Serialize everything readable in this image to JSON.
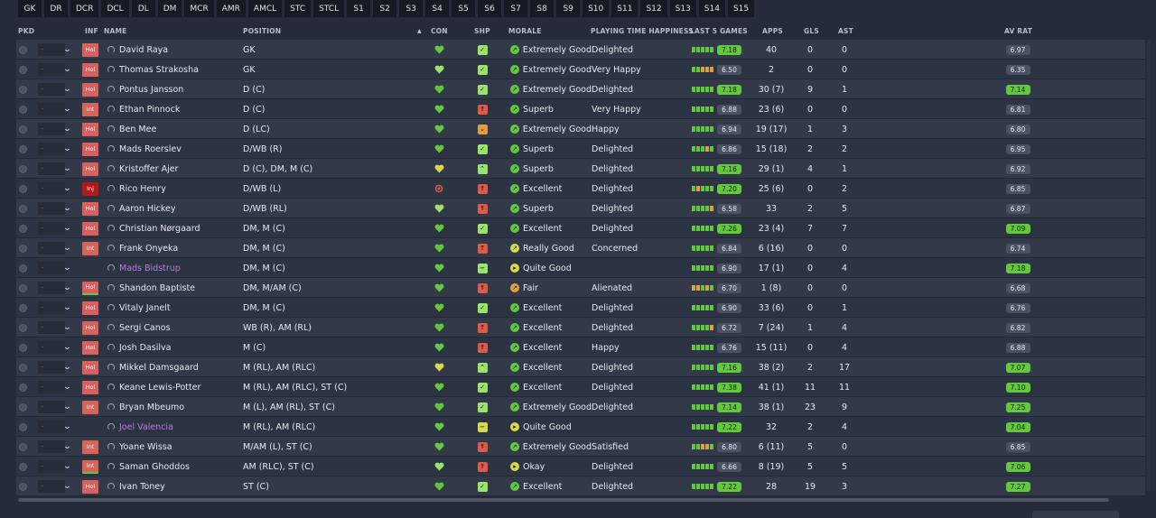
{
  "tabs": [
    "GK",
    "DR",
    "DCR",
    "DCL",
    "DL",
    "DM",
    "MCR",
    "AMR",
    "AMCL",
    "STC",
    "STCL",
    "S1",
    "S2",
    "S3",
    "S4",
    "S5",
    "S6",
    "S7",
    "S8",
    "S9",
    "S10",
    "S11",
    "S12",
    "S13",
    "S14",
    "S15"
  ],
  "columns": {
    "pkd": "PKD",
    "inf": "INF",
    "name": "NAME",
    "position": "POSITION",
    "con": "CON",
    "shp": "SHP",
    "morale": "MORALE",
    "playing_time": "PLAYING TIME HAPPINESS",
    "last5": "LAST 5 GAMES",
    "apps": "APPS",
    "gls": "GLS",
    "ast": "AST",
    "avrat": "AV RAT"
  },
  "colors": {
    "green": "#62c93c",
    "light_green": "#9be36a",
    "yellow": "#d8d84a",
    "orange": "#e0a040",
    "red": "#e05a4a",
    "grey": "#4a5162"
  },
  "players": [
    {
      "inf": "Hol",
      "name": "David Raya",
      "position": "GK",
      "con": "green",
      "shp": "check",
      "shp_color": "light_green",
      "morale": "Extremely Good",
      "morale_icon": "up",
      "morale_color": "green",
      "pt": "Delighted",
      "last5": [
        "green",
        "green",
        "green",
        "green",
        "green"
      ],
      "l5": "7.18",
      "l5_green": true,
      "apps": "40",
      "gls": "0",
      "ast": "0",
      "av": "6.97",
      "av_green": false
    },
    {
      "inf": "Hol",
      "name": "Thomas Strakosha",
      "position": "GK",
      "con": "lightgreen",
      "shp": "check",
      "shp_color": "light_green",
      "morale": "Extremely Good",
      "morale_icon": "up",
      "morale_color": "green",
      "pt": "Very Happy",
      "last5": [
        "green",
        "green",
        "orange",
        "orange",
        "orange"
      ],
      "l5": "6.50",
      "l5_green": false,
      "apps": "2",
      "gls": "0",
      "ast": "0",
      "av": "6.35",
      "av_green": false
    },
    {
      "inf": "Hol",
      "name": "Pontus Jansson",
      "position": "D (C)",
      "con": "green",
      "shp": "check",
      "shp_color": "light_green",
      "morale": "Extremely Good",
      "morale_icon": "up",
      "morale_color": "green",
      "pt": "Delighted",
      "last5": [
        "green",
        "green",
        "green",
        "green",
        "green"
      ],
      "l5": "7.18",
      "l5_green": true,
      "apps": "30 (7)",
      "gls": "9",
      "ast": "1",
      "av": "7.14",
      "av_green": true
    },
    {
      "inf": "Int",
      "name": "Ethan Pinnock",
      "position": "D (C)",
      "con": "green",
      "shp": "arrow",
      "shp_color": "red",
      "morale": "Superb",
      "morale_icon": "up",
      "morale_color": "green",
      "pt": "Very Happy",
      "last5": [
        "green",
        "green",
        "green",
        "green",
        "green"
      ],
      "l5": "6.88",
      "l5_green": false,
      "apps": "23 (6)",
      "gls": "0",
      "ast": "0",
      "av": "6.81",
      "av_green": false
    },
    {
      "inf": "Hol",
      "name": "Ben Mee",
      "position": "D (LC)",
      "con": "green",
      "shp": "down",
      "shp_color": "orange",
      "morale": "Extremely Good",
      "morale_icon": "up",
      "morale_color": "green",
      "pt": "Happy",
      "last5": [
        "green",
        "green",
        "green",
        "green",
        "green"
      ],
      "l5": "6.94",
      "l5_green": false,
      "apps": "19 (17)",
      "gls": "1",
      "ast": "3",
      "av": "6.80",
      "av_green": false
    },
    {
      "inf": "Hol",
      "name": "Mads Roerslev",
      "position": "D/WB (R)",
      "con": "green",
      "shp": "check",
      "shp_color": "light_green",
      "morale": "Superb",
      "morale_icon": "up",
      "morale_color": "green",
      "pt": "Delighted",
      "last5": [
        "green",
        "green",
        "green",
        "orange",
        "green"
      ],
      "l5": "6.86",
      "l5_green": false,
      "apps": "15 (18)",
      "gls": "2",
      "ast": "2",
      "av": "6.95",
      "av_green": false
    },
    {
      "inf": "Hol",
      "name": "Kristoffer Ajer",
      "position": "D (C), DM, M (C)",
      "con": "yellow",
      "shp": "up",
      "shp_color": "light_green",
      "morale": "Superb",
      "morale_icon": "up",
      "morale_color": "green",
      "pt": "Delighted",
      "last5": [
        "green",
        "green",
        "green",
        "green",
        "green"
      ],
      "l5": "7.16",
      "l5_green": true,
      "apps": "29 (1)",
      "gls": "4",
      "ast": "1",
      "av": "6.92",
      "av_green": false
    },
    {
      "inf": "Inj",
      "name": "Rico Henry",
      "position": "D/WB (L)",
      "con": "red",
      "shp": "arrow",
      "shp_color": "red",
      "morale": "Excellent",
      "morale_icon": "up",
      "morale_color": "green",
      "pt": "Delighted",
      "last5": [
        "green",
        "orange",
        "green",
        "green",
        "green"
      ],
      "l5": "7.20",
      "l5_green": true,
      "apps": "25 (6)",
      "gls": "0",
      "ast": "2",
      "av": "6.85",
      "av_green": false
    },
    {
      "inf": "Hol",
      "name": "Aaron Hickey",
      "position": "D/WB (RL)",
      "con": "lightgreen",
      "shp": "arrow",
      "shp_color": "red",
      "morale": "Superb",
      "morale_icon": "up",
      "morale_color": "green",
      "pt": "Delighted",
      "last5": [
        "green",
        "green",
        "green",
        "green",
        "orange"
      ],
      "l5": "6.58",
      "l5_green": false,
      "apps": "33",
      "gls": "2",
      "ast": "5",
      "av": "6.87",
      "av_green": false
    },
    {
      "inf": "Hol",
      "name": "Christian Nørgaard",
      "position": "DM, M (C)",
      "con": "green",
      "shp": "check",
      "shp_color": "light_green",
      "morale": "Excellent",
      "morale_icon": "up",
      "morale_color": "green",
      "pt": "Delighted",
      "last5": [
        "green",
        "green",
        "green",
        "green",
        "green"
      ],
      "l5": "7.26",
      "l5_green": true,
      "apps": "23 (4)",
      "gls": "7",
      "ast": "7",
      "av": "7.09",
      "av_green": true
    },
    {
      "inf": "Int",
      "name": "Frank Onyeka",
      "position": "DM, M (C)",
      "con": "green",
      "shp": "arrow",
      "shp_color": "red",
      "morale": "Really Good",
      "morale_icon": "up",
      "morale_color": "yellow",
      "pt": "Concerned",
      "last5": [
        "green",
        "green",
        "green",
        "green",
        "green"
      ],
      "l5": "6.84",
      "l5_green": false,
      "apps": "6 (16)",
      "gls": "0",
      "ast": "0",
      "av": "6.74",
      "av_green": false
    },
    {
      "inf": "",
      "name": "Mads Bidstrup",
      "loan": true,
      "position": "DM, M (C)",
      "con": "green",
      "shp": "minus",
      "shp_color": "light_green",
      "morale": "Quite Good",
      "morale_icon": "right",
      "morale_color": "yellow",
      "pt": "",
      "last5": [
        "green",
        "green",
        "green",
        "green",
        "green"
      ],
      "l5": "6.90",
      "l5_green": false,
      "apps": "17 (1)",
      "gls": "0",
      "ast": "4",
      "av": "7.18",
      "av_green": true
    },
    {
      "inf": "Hol",
      "inf_strip": true,
      "name": "Shandon Baptiste",
      "position": "DM, M/AM (C)",
      "con": "green",
      "shp": "arrow",
      "shp_color": "red",
      "morale": "Fair",
      "morale_icon": "up",
      "morale_color": "orange",
      "pt": "Alienated",
      "last5": [
        "orange",
        "orange",
        "green",
        "orange",
        "green"
      ],
      "l5": "6.70",
      "l5_green": false,
      "apps": "1 (8)",
      "gls": "0",
      "ast": "0",
      "av": "6.68",
      "av_green": false
    },
    {
      "inf": "Hol",
      "name": "Vitaly Janelt",
      "position": "DM, M (C)",
      "con": "green",
      "shp": "check",
      "shp_color": "light_green",
      "morale": "Excellent",
      "morale_icon": "up",
      "morale_color": "green",
      "pt": "Delighted",
      "last5": [
        "green",
        "green",
        "green",
        "green",
        "green"
      ],
      "l5": "6.90",
      "l5_green": false,
      "apps": "33 (6)",
      "gls": "0",
      "ast": "1",
      "av": "6.76",
      "av_green": false
    },
    {
      "inf": "Hol",
      "name": "Sergi Canos",
      "position": "WB (R), AM (RL)",
      "con": "green",
      "shp": "arrow",
      "shp_color": "red",
      "morale": "Excellent",
      "morale_icon": "up",
      "morale_color": "green",
      "pt": "Delighted",
      "last5": [
        "green",
        "green",
        "green",
        "green",
        "orange"
      ],
      "l5": "6.72",
      "l5_green": false,
      "apps": "7 (24)",
      "gls": "1",
      "ast": "4",
      "av": "6.82",
      "av_green": false
    },
    {
      "inf": "Hol",
      "name": "Josh Dasilva",
      "position": "M (C)",
      "con": "green",
      "shp": "arrow",
      "shp_color": "red",
      "morale": "Excellent",
      "morale_icon": "up",
      "morale_color": "green",
      "pt": "Happy",
      "last5": [
        "green",
        "green",
        "green",
        "green",
        "green"
      ],
      "l5": "6.76",
      "l5_green": false,
      "apps": "15 (11)",
      "gls": "0",
      "ast": "4",
      "av": "6.88",
      "av_green": false
    },
    {
      "inf": "Hol",
      "name": "Mikkel Damsgaard",
      "position": "M (RL), AM (RLC)",
      "con": "yellow",
      "shp": "up",
      "shp_color": "light_green",
      "morale": "Excellent",
      "morale_icon": "up",
      "morale_color": "green",
      "pt": "Delighted",
      "last5": [
        "green",
        "green",
        "green",
        "green",
        "green"
      ],
      "l5": "7.16",
      "l5_green": true,
      "apps": "38 (2)",
      "gls": "2",
      "ast": "17",
      "av": "7.07",
      "av_green": true
    },
    {
      "inf": "Hol",
      "name": "Keane Lewis-Potter",
      "position": "M (RL), AM (RLC), ST (C)",
      "con": "green",
      "shp": "check",
      "shp_color": "light_green",
      "morale": "Excellent",
      "morale_icon": "up",
      "morale_color": "green",
      "pt": "Delighted",
      "last5": [
        "green",
        "green",
        "green",
        "green",
        "green"
      ],
      "l5": "7.38",
      "l5_green": true,
      "apps": "41 (1)",
      "gls": "11",
      "ast": "11",
      "av": "7.10",
      "av_green": true
    },
    {
      "inf": "Int",
      "name": "Bryan Mbeumo",
      "position": "M (L), AM (RL), ST (C)",
      "con": "green",
      "shp": "check",
      "shp_color": "light_green",
      "morale": "Extremely Good",
      "morale_icon": "up",
      "morale_color": "green",
      "pt": "Delighted",
      "last5": [
        "green",
        "green",
        "green",
        "green",
        "green"
      ],
      "l5": "7.14",
      "l5_green": true,
      "apps": "38 (1)",
      "gls": "23",
      "ast": "9",
      "av": "7.25",
      "av_green": true
    },
    {
      "inf": "",
      "name": "Joel Valencia",
      "loan": true,
      "position": "M (RL), AM (RLC)",
      "con": "green",
      "shp": "minus",
      "shp_color": "yellow",
      "morale": "Quite Good",
      "morale_icon": "right",
      "morale_color": "yellow",
      "pt": "",
      "last5": [
        "green",
        "green",
        "green",
        "green",
        "green"
      ],
      "l5": "7.22",
      "l5_green": true,
      "apps": "32",
      "gls": "2",
      "ast": "4",
      "av": "7.04",
      "av_green": true
    },
    {
      "inf": "Int",
      "name": "Yoane Wissa",
      "position": "M/AM (L), ST (C)",
      "con": "green",
      "shp": "arrow",
      "shp_color": "red",
      "morale": "Extremely Good",
      "morale_icon": "up",
      "morale_color": "green",
      "pt": "Satisfied",
      "last5": [
        "green",
        "green",
        "orange",
        "orange",
        "green"
      ],
      "l5": "6.80",
      "l5_green": false,
      "apps": "6 (11)",
      "gls": "5",
      "ast": "0",
      "av": "6.85",
      "av_green": false
    },
    {
      "inf": "Int",
      "inf_strip": true,
      "name": "Saman Ghoddos",
      "position": "AM (RLC), ST (C)",
      "con": "lightgreen",
      "shp": "arrow",
      "shp_color": "red",
      "morale": "Okay",
      "morale_icon": "right",
      "morale_color": "yellow",
      "pt": "Delighted",
      "last5": [
        "green",
        "green",
        "green",
        "green",
        "green"
      ],
      "l5": "6.66",
      "l5_green": false,
      "apps": "8 (19)",
      "gls": "5",
      "ast": "5",
      "av": "7.06",
      "av_green": true
    },
    {
      "inf": "Hol",
      "name": "Ivan Toney",
      "position": "ST (C)",
      "con": "green",
      "shp": "check",
      "shp_color": "light_green",
      "morale": "Excellent",
      "morale_icon": "up",
      "morale_color": "green",
      "pt": "Delighted",
      "last5": [
        "green",
        "green",
        "green",
        "green",
        "green"
      ],
      "l5": "7.22",
      "l5_green": true,
      "apps": "28",
      "gls": "19",
      "ast": "3",
      "av": "7.27",
      "av_green": true
    }
  ]
}
